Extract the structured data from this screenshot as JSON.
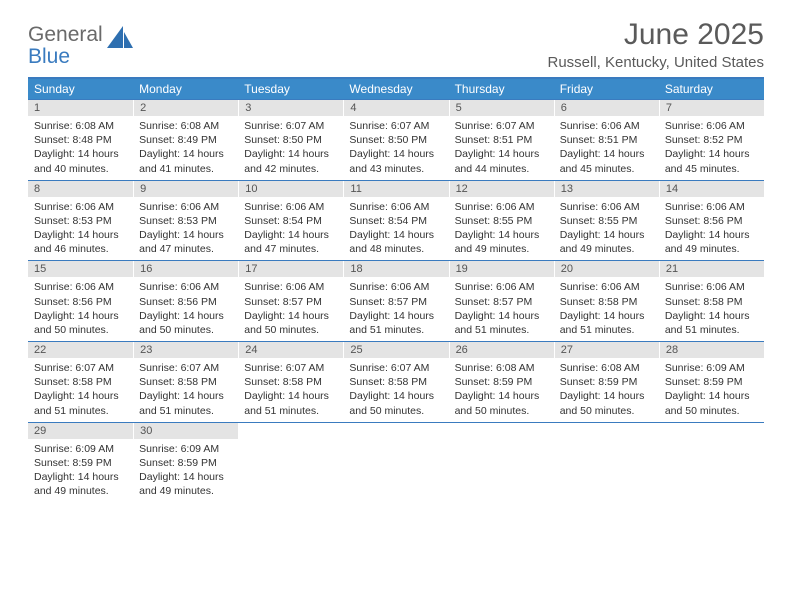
{
  "logo": {
    "line1": "General",
    "line2": "Blue"
  },
  "title": "June 2025",
  "subtitle": "Russell, Kentucky, United States",
  "colors": {
    "header_bar": "#3a8ac9",
    "rule": "#3a7bbf",
    "daynum_bg": "#e4e4e4",
    "text": "#333333",
    "title_text": "#5a5a5a"
  },
  "days_of_week": [
    "Sunday",
    "Monday",
    "Tuesday",
    "Wednesday",
    "Thursday",
    "Friday",
    "Saturday"
  ],
  "weeks": [
    [
      {
        "n": "1",
        "sunrise": "6:08 AM",
        "sunset": "8:48 PM",
        "daylight": "14 hours and 40 minutes."
      },
      {
        "n": "2",
        "sunrise": "6:08 AM",
        "sunset": "8:49 PM",
        "daylight": "14 hours and 41 minutes."
      },
      {
        "n": "3",
        "sunrise": "6:07 AM",
        "sunset": "8:50 PM",
        "daylight": "14 hours and 42 minutes."
      },
      {
        "n": "4",
        "sunrise": "6:07 AM",
        "sunset": "8:50 PM",
        "daylight": "14 hours and 43 minutes."
      },
      {
        "n": "5",
        "sunrise": "6:07 AM",
        "sunset": "8:51 PM",
        "daylight": "14 hours and 44 minutes."
      },
      {
        "n": "6",
        "sunrise": "6:06 AM",
        "sunset": "8:51 PM",
        "daylight": "14 hours and 45 minutes."
      },
      {
        "n": "7",
        "sunrise": "6:06 AM",
        "sunset": "8:52 PM",
        "daylight": "14 hours and 45 minutes."
      }
    ],
    [
      {
        "n": "8",
        "sunrise": "6:06 AM",
        "sunset": "8:53 PM",
        "daylight": "14 hours and 46 minutes."
      },
      {
        "n": "9",
        "sunrise": "6:06 AM",
        "sunset": "8:53 PM",
        "daylight": "14 hours and 47 minutes."
      },
      {
        "n": "10",
        "sunrise": "6:06 AM",
        "sunset": "8:54 PM",
        "daylight": "14 hours and 47 minutes."
      },
      {
        "n": "11",
        "sunrise": "6:06 AM",
        "sunset": "8:54 PM",
        "daylight": "14 hours and 48 minutes."
      },
      {
        "n": "12",
        "sunrise": "6:06 AM",
        "sunset": "8:55 PM",
        "daylight": "14 hours and 49 minutes."
      },
      {
        "n": "13",
        "sunrise": "6:06 AM",
        "sunset": "8:55 PM",
        "daylight": "14 hours and 49 minutes."
      },
      {
        "n": "14",
        "sunrise": "6:06 AM",
        "sunset": "8:56 PM",
        "daylight": "14 hours and 49 minutes."
      }
    ],
    [
      {
        "n": "15",
        "sunrise": "6:06 AM",
        "sunset": "8:56 PM",
        "daylight": "14 hours and 50 minutes."
      },
      {
        "n": "16",
        "sunrise": "6:06 AM",
        "sunset": "8:56 PM",
        "daylight": "14 hours and 50 minutes."
      },
      {
        "n": "17",
        "sunrise": "6:06 AM",
        "sunset": "8:57 PM",
        "daylight": "14 hours and 50 minutes."
      },
      {
        "n": "18",
        "sunrise": "6:06 AM",
        "sunset": "8:57 PM",
        "daylight": "14 hours and 51 minutes."
      },
      {
        "n": "19",
        "sunrise": "6:06 AM",
        "sunset": "8:57 PM",
        "daylight": "14 hours and 51 minutes."
      },
      {
        "n": "20",
        "sunrise": "6:06 AM",
        "sunset": "8:58 PM",
        "daylight": "14 hours and 51 minutes."
      },
      {
        "n": "21",
        "sunrise": "6:06 AM",
        "sunset": "8:58 PM",
        "daylight": "14 hours and 51 minutes."
      }
    ],
    [
      {
        "n": "22",
        "sunrise": "6:07 AM",
        "sunset": "8:58 PM",
        "daylight": "14 hours and 51 minutes."
      },
      {
        "n": "23",
        "sunrise": "6:07 AM",
        "sunset": "8:58 PM",
        "daylight": "14 hours and 51 minutes."
      },
      {
        "n": "24",
        "sunrise": "6:07 AM",
        "sunset": "8:58 PM",
        "daylight": "14 hours and 51 minutes."
      },
      {
        "n": "25",
        "sunrise": "6:07 AM",
        "sunset": "8:58 PM",
        "daylight": "14 hours and 50 minutes."
      },
      {
        "n": "26",
        "sunrise": "6:08 AM",
        "sunset": "8:59 PM",
        "daylight": "14 hours and 50 minutes."
      },
      {
        "n": "27",
        "sunrise": "6:08 AM",
        "sunset": "8:59 PM",
        "daylight": "14 hours and 50 minutes."
      },
      {
        "n": "28",
        "sunrise": "6:09 AM",
        "sunset": "8:59 PM",
        "daylight": "14 hours and 50 minutes."
      }
    ],
    [
      {
        "n": "29",
        "sunrise": "6:09 AM",
        "sunset": "8:59 PM",
        "daylight": "14 hours and 49 minutes."
      },
      {
        "n": "30",
        "sunrise": "6:09 AM",
        "sunset": "8:59 PM",
        "daylight": "14 hours and 49 minutes."
      },
      null,
      null,
      null,
      null,
      null
    ]
  ],
  "labels": {
    "sunrise": "Sunrise: ",
    "sunset": "Sunset: ",
    "daylight": "Daylight: "
  }
}
